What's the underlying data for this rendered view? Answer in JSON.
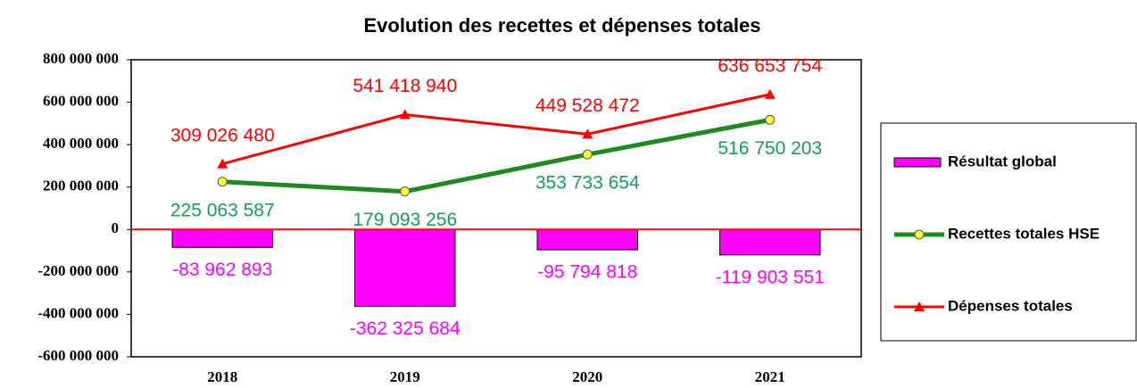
{
  "chart_data": {
    "type": "bar_line",
    "title": "Evolution des recettes et dépenses totales",
    "categories": [
      "2018",
      "2019",
      "2020",
      "2021"
    ],
    "ylim": [
      -600000000,
      800000000
    ],
    "yticks": [
      {
        "value": -600000000,
        "label": "-600 000 000"
      },
      {
        "value": -400000000,
        "label": "-400 000 000"
      },
      {
        "value": -200000000,
        "label": "-200 000 000"
      },
      0,
      {
        "value": 200000000,
        "label": "200 000 000"
      },
      {
        "value": 400000000,
        "label": "400 000 000"
      },
      {
        "value": 600000000,
        "label": "600 000 000"
      },
      {
        "value": 800000000,
        "label": "800 000 000"
      }
    ],
    "legend": "right",
    "series": [
      {
        "name": "Résultat global",
        "type": "bar",
        "color": "#ff00ff",
        "label_color": "#ff00ff",
        "values": [
          -83962893,
          -362325684,
          -95794818,
          -119903551
        ],
        "value_labels": [
          "-83 962 893",
          "-362 325 684",
          "-95 794 818",
          "-119 903 551"
        ]
      },
      {
        "name": "Recettes totales HSE",
        "type": "line",
        "color": "#1f8a1f",
        "marker_color": "#ffff33",
        "label_color": "#13a055",
        "values": [
          225063587,
          179093256,
          353733654,
          516750203
        ],
        "value_labels": [
          "225 063 587",
          "179 093 256",
          "353 733 654",
          "516 750 203"
        ]
      },
      {
        "name": "Dépenses totales",
        "type": "line",
        "color": "#ff0000",
        "marker_color": "#ff0000",
        "label_color": "#ff0000",
        "values": [
          309026480,
          541418940,
          449528472,
          636653754
        ],
        "value_labels": [
          "309 026 480",
          "541 418 940",
          "449 528 472",
          "636 653 754"
        ]
      }
    ]
  }
}
